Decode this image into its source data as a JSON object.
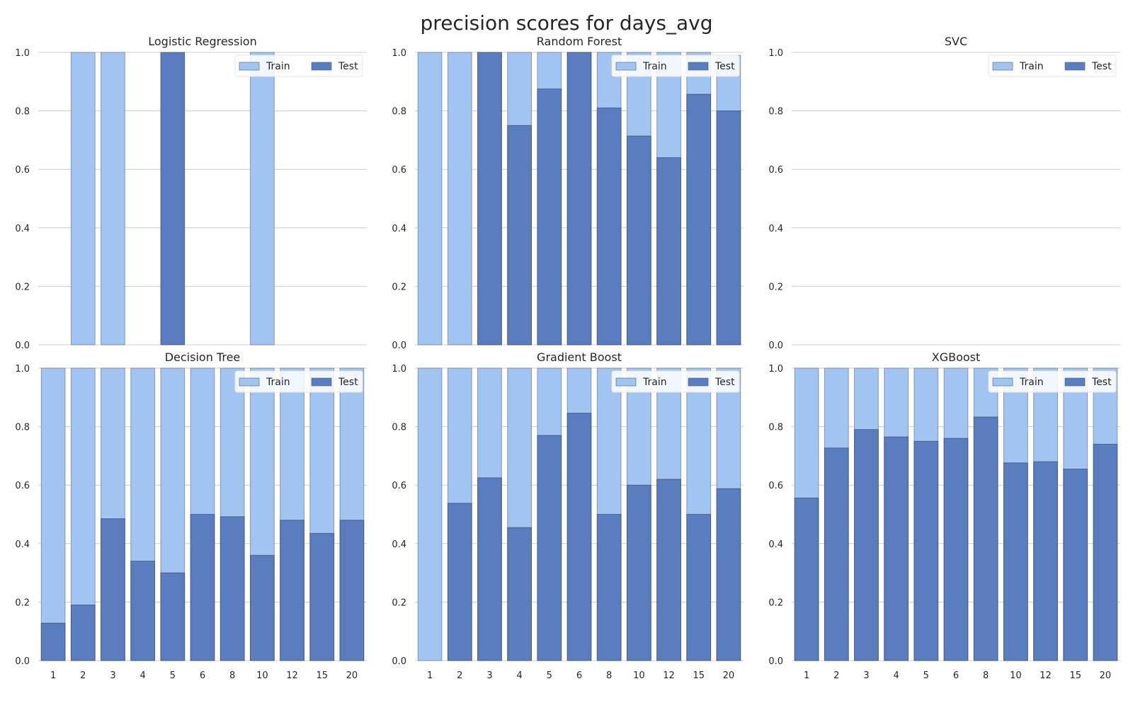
{
  "figure": {
    "title": "precision scores for days_avg"
  },
  "colors": {
    "train": "#a1c5f0",
    "test": "#5a7dbf",
    "grid": "#cccccc",
    "text": "#262626"
  },
  "chart_data": [
    {
      "type": "bar",
      "title": "Logistic Regression",
      "categories": [
        "1",
        "2",
        "3",
        "4",
        "5",
        "6",
        "8",
        "10",
        "12",
        "15",
        "20"
      ],
      "ylim": [
        0,
        1
      ],
      "yticks": [
        "0.0",
        "0.2",
        "0.4",
        "0.6",
        "0.8",
        "1.0"
      ],
      "show_xticks": false,
      "grid": true,
      "legend": {
        "position": "top-right",
        "entries": [
          "Train",
          "Test"
        ]
      },
      "series": [
        {
          "name": "Train",
          "values": [
            0,
            1,
            1,
            0,
            0,
            0,
            0,
            1,
            0,
            0,
            0
          ]
        },
        {
          "name": "Test",
          "values": [
            0,
            0,
            0,
            0,
            1,
            0,
            0,
            0,
            0,
            0,
            0
          ]
        }
      ]
    },
    {
      "type": "bar",
      "title": "Random Forest",
      "categories": [
        "1",
        "2",
        "3",
        "4",
        "5",
        "6",
        "8",
        "10",
        "12",
        "15",
        "20"
      ],
      "ylim": [
        0,
        1
      ],
      "yticks": [
        "0.0",
        "0.2",
        "0.4",
        "0.6",
        "0.8",
        "1.0"
      ],
      "show_xticks": false,
      "grid": true,
      "legend": {
        "position": "top-right",
        "entries": [
          "Train",
          "Test"
        ]
      },
      "series": [
        {
          "name": "Train",
          "values": [
            1,
            1,
            1,
            1,
            1,
            1,
            1,
            1,
            1,
            1,
            0.99
          ]
        },
        {
          "name": "Test",
          "values": [
            0,
            0,
            1,
            0.75,
            0.875,
            1,
            0.81,
            0.714,
            0.64,
            0.857,
            0.8
          ]
        }
      ]
    },
    {
      "type": "bar",
      "title": "SVC",
      "categories": [
        "1",
        "2",
        "3",
        "4",
        "5",
        "6",
        "8",
        "10",
        "12",
        "15",
        "20"
      ],
      "ylim": [
        0,
        1
      ],
      "yticks": [
        "0.0",
        "0.2",
        "0.4",
        "0.6",
        "0.8",
        "1.0"
      ],
      "show_xticks": false,
      "grid": true,
      "legend": {
        "position": "top-right",
        "entries": [
          "Train",
          "Test"
        ]
      },
      "series": [
        {
          "name": "Train",
          "values": [
            0,
            0,
            0,
            0,
            0,
            0,
            0,
            0,
            0,
            0,
            0
          ]
        },
        {
          "name": "Test",
          "values": [
            0,
            0,
            0,
            0,
            0,
            0,
            0,
            0,
            0,
            0,
            0
          ]
        }
      ]
    },
    {
      "type": "bar",
      "title": "Decision Tree",
      "categories": [
        "1",
        "2",
        "3",
        "4",
        "5",
        "6",
        "8",
        "10",
        "12",
        "15",
        "20"
      ],
      "ylim": [
        0,
        1
      ],
      "yticks": [
        "0.0",
        "0.2",
        "0.4",
        "0.6",
        "0.8",
        "1.0"
      ],
      "show_xticks": true,
      "grid": true,
      "legend": {
        "position": "top-right",
        "entries": [
          "Train",
          "Test"
        ]
      },
      "series": [
        {
          "name": "Train",
          "values": [
            1,
            1,
            1,
            1,
            1,
            1,
            1,
            1,
            1,
            1,
            1
          ]
        },
        {
          "name": "Test",
          "values": [
            0.128,
            0.19,
            0.485,
            0.34,
            0.3,
            0.5,
            0.492,
            0.36,
            0.48,
            0.435,
            0.48
          ]
        }
      ]
    },
    {
      "type": "bar",
      "title": "Gradient Boost",
      "categories": [
        "1",
        "2",
        "3",
        "4",
        "5",
        "6",
        "8",
        "10",
        "12",
        "15",
        "20"
      ],
      "ylim": [
        0,
        1
      ],
      "yticks": [
        "0.0",
        "0.2",
        "0.4",
        "0.6",
        "0.8",
        "1.0"
      ],
      "show_xticks": true,
      "grid": true,
      "legend": {
        "position": "top-right",
        "entries": [
          "Train",
          "Test"
        ]
      },
      "series": [
        {
          "name": "Train",
          "values": [
            1,
            1,
            1,
            1,
            1,
            1,
            1,
            1,
            1,
            1,
            1
          ]
        },
        {
          "name": "Test",
          "values": [
            0,
            0.538,
            0.625,
            0.455,
            0.77,
            0.846,
            0.5,
            0.6,
            0.62,
            0.5,
            0.588
          ]
        }
      ]
    },
    {
      "type": "bar",
      "title": "XGBoost",
      "categories": [
        "1",
        "2",
        "3",
        "4",
        "5",
        "6",
        "8",
        "10",
        "12",
        "15",
        "20"
      ],
      "ylim": [
        0,
        1
      ],
      "yticks": [
        "0.0",
        "0.2",
        "0.4",
        "0.6",
        "0.8",
        "1.0"
      ],
      "show_xticks": true,
      "grid": true,
      "legend": {
        "position": "top-right",
        "entries": [
          "Train",
          "Test"
        ]
      },
      "series": [
        {
          "name": "Train",
          "values": [
            1,
            1,
            1,
            1,
            1,
            1,
            1,
            1,
            1,
            1,
            1
          ]
        },
        {
          "name": "Test",
          "values": [
            0.556,
            0.727,
            0.79,
            0.765,
            0.75,
            0.76,
            0.833,
            0.676,
            0.68,
            0.655,
            0.74
          ]
        }
      ]
    }
  ]
}
